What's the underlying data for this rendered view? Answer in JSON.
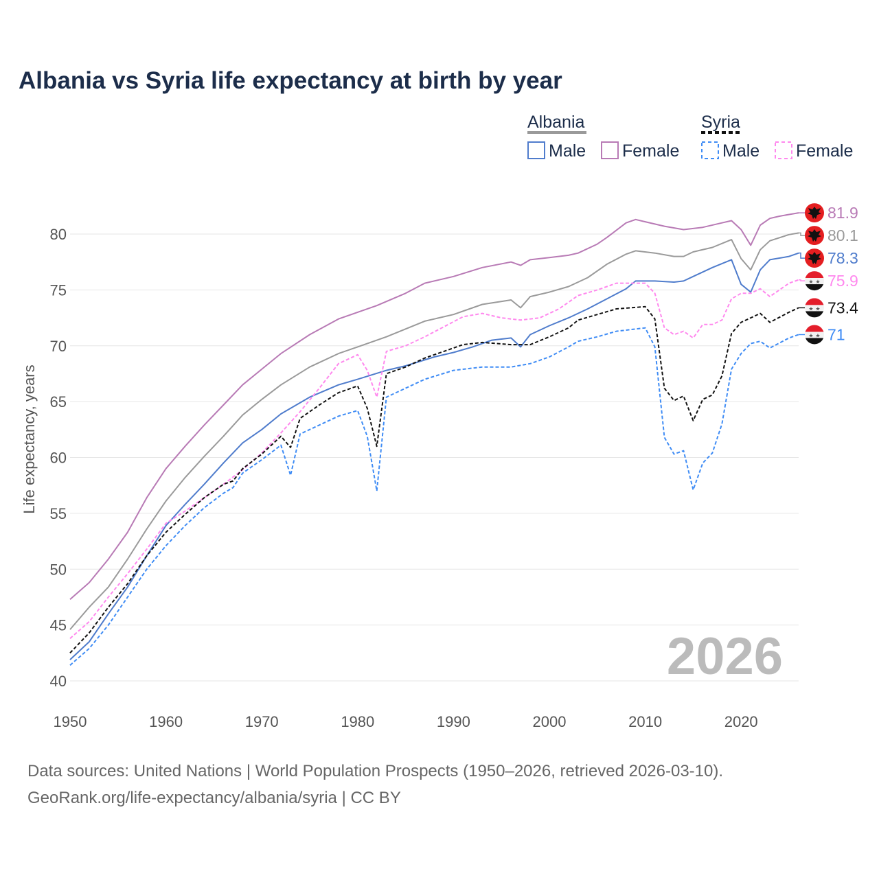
{
  "chart_data": {
    "type": "line",
    "title": "Albania vs Syria life expectancy at birth by year",
    "xlabel": "",
    "ylabel": "Life expectancy, years",
    "xlim": [
      1950,
      2026
    ],
    "ylim": [
      40,
      83
    ],
    "x_ticks": [
      1950,
      1960,
      1970,
      1980,
      1990,
      2000,
      2010,
      2020
    ],
    "y_ticks": [
      40,
      45,
      50,
      55,
      60,
      65,
      70,
      75,
      80
    ],
    "grid": true,
    "year_watermark": "2026",
    "legend": {
      "placement": "top-right",
      "groups": [
        {
          "country": "Albania",
          "items": [
            "Male",
            "Female"
          ],
          "style": "solid",
          "total_color": "#9a9a9a"
        },
        {
          "country": "Syria",
          "items": [
            "Male",
            "Female"
          ],
          "style": "dashed",
          "total_color": "#111111"
        }
      ]
    },
    "series": [
      {
        "name": "Albania Female",
        "country": "Albania",
        "sex": "Female",
        "color": "#b87ab5",
        "dash": false,
        "end_label": "81.9",
        "flag": "albania-flag",
        "points": [
          [
            1950,
            47.3
          ],
          [
            1952,
            48.8
          ],
          [
            1954,
            50.9
          ],
          [
            1956,
            53.3
          ],
          [
            1958,
            56.4
          ],
          [
            1960,
            59.0
          ],
          [
            1962,
            61.0
          ],
          [
            1964,
            62.9
          ],
          [
            1966,
            64.7
          ],
          [
            1968,
            66.5
          ],
          [
            1970,
            67.9
          ],
          [
            1972,
            69.3
          ],
          [
            1975,
            71.0
          ],
          [
            1978,
            72.4
          ],
          [
            1980,
            73.0
          ],
          [
            1982,
            73.6
          ],
          [
            1985,
            74.7
          ],
          [
            1987,
            75.6
          ],
          [
            1990,
            76.2
          ],
          [
            1993,
            77.0
          ],
          [
            1996,
            77.5
          ],
          [
            1997,
            77.2
          ],
          [
            1998,
            77.7
          ],
          [
            2000,
            77.9
          ],
          [
            2002,
            78.1
          ],
          [
            2003,
            78.3
          ],
          [
            2005,
            79.1
          ],
          [
            2006,
            79.7
          ],
          [
            2008,
            81.0
          ],
          [
            2009,
            81.3
          ],
          [
            2010,
            81.1
          ],
          [
            2012,
            80.7
          ],
          [
            2014,
            80.4
          ],
          [
            2016,
            80.6
          ],
          [
            2018,
            81.0
          ],
          [
            2019,
            81.2
          ],
          [
            2020,
            80.4
          ],
          [
            2021,
            79.0
          ],
          [
            2022,
            80.8
          ],
          [
            2023,
            81.4
          ],
          [
            2024,
            81.6
          ],
          [
            2025,
            81.75
          ],
          [
            2026,
            81.9
          ]
        ]
      },
      {
        "name": "Albania Total",
        "country": "Albania",
        "sex": "Total",
        "color": "#9a9a9a",
        "dash": false,
        "end_label": "80.1",
        "flag": "albania-flag",
        "points": [
          [
            1950,
            44.6
          ],
          [
            1952,
            46.6
          ],
          [
            1954,
            48.4
          ],
          [
            1956,
            50.9
          ],
          [
            1958,
            53.6
          ],
          [
            1960,
            56.1
          ],
          [
            1962,
            58.2
          ],
          [
            1964,
            60.1
          ],
          [
            1966,
            61.9
          ],
          [
            1968,
            63.8
          ],
          [
            1970,
            65.2
          ],
          [
            1972,
            66.5
          ],
          [
            1975,
            68.1
          ],
          [
            1978,
            69.3
          ],
          [
            1980,
            69.9
          ],
          [
            1983,
            70.8
          ],
          [
            1985,
            71.5
          ],
          [
            1987,
            72.2
          ],
          [
            1990,
            72.8
          ],
          [
            1993,
            73.7
          ],
          [
            1996,
            74.1
          ],
          [
            1997,
            73.4
          ],
          [
            1998,
            74.4
          ],
          [
            2000,
            74.8
          ],
          [
            2002,
            75.3
          ],
          [
            2004,
            76.1
          ],
          [
            2006,
            77.3
          ],
          [
            2008,
            78.2
          ],
          [
            2009,
            78.5
          ],
          [
            2011,
            78.3
          ],
          [
            2013,
            78.0
          ],
          [
            2014,
            78.0
          ],
          [
            2015,
            78.4
          ],
          [
            2017,
            78.8
          ],
          [
            2019,
            79.5
          ],
          [
            2020,
            77.8
          ],
          [
            2021,
            76.8
          ],
          [
            2022,
            78.6
          ],
          [
            2023,
            79.4
          ],
          [
            2025,
            79.95
          ],
          [
            2026,
            80.1
          ]
        ]
      },
      {
        "name": "Albania Male",
        "country": "Albania",
        "sex": "Male",
        "color": "#4f7ccc",
        "dash": false,
        "end_label": "78.3",
        "flag": "albania-flag",
        "points": [
          [
            1950,
            41.9
          ],
          [
            1952,
            43.5
          ],
          [
            1954,
            46.0
          ],
          [
            1956,
            48.4
          ],
          [
            1958,
            51.2
          ],
          [
            1960,
            53.9
          ],
          [
            1962,
            55.8
          ],
          [
            1964,
            57.6
          ],
          [
            1966,
            59.5
          ],
          [
            1968,
            61.3
          ],
          [
            1970,
            62.5
          ],
          [
            1972,
            63.9
          ],
          [
            1975,
            65.4
          ],
          [
            1978,
            66.5
          ],
          [
            1980,
            67.0
          ],
          [
            1983,
            67.8
          ],
          [
            1985,
            68.2
          ],
          [
            1988,
            69.0
          ],
          [
            1990,
            69.4
          ],
          [
            1992,
            69.9
          ],
          [
            1994,
            70.5
          ],
          [
            1996,
            70.7
          ],
          [
            1997,
            69.9
          ],
          [
            1998,
            71.0
          ],
          [
            2000,
            71.8
          ],
          [
            2002,
            72.5
          ],
          [
            2004,
            73.3
          ],
          [
            2006,
            74.2
          ],
          [
            2008,
            75.1
          ],
          [
            2009,
            75.8
          ],
          [
            2011,
            75.8
          ],
          [
            2013,
            75.7
          ],
          [
            2014,
            75.8
          ],
          [
            2015,
            76.2
          ],
          [
            2017,
            77.0
          ],
          [
            2019,
            77.7
          ],
          [
            2020,
            75.5
          ],
          [
            2021,
            74.8
          ],
          [
            2022,
            76.8
          ],
          [
            2023,
            77.7
          ],
          [
            2025,
            78.0
          ],
          [
            2026,
            78.3
          ]
        ]
      },
      {
        "name": "Syria Female",
        "country": "Syria",
        "sex": "Female",
        "color": "#ff88ee",
        "dash": true,
        "end_label": "75.9",
        "flag": "syria-flag",
        "points": [
          [
            1950,
            43.8
          ],
          [
            1952,
            45.3
          ],
          [
            1954,
            47.5
          ],
          [
            1956,
            49.6
          ],
          [
            1958,
            51.8
          ],
          [
            1960,
            54.1
          ],
          [
            1962,
            55.2
          ],
          [
            1964,
            56.4
          ],
          [
            1966,
            57.6
          ],
          [
            1968,
            58.9
          ],
          [
            1970,
            60.4
          ],
          [
            1972,
            62.2
          ],
          [
            1974,
            64.1
          ],
          [
            1976,
            66.2
          ],
          [
            1978,
            68.4
          ],
          [
            1980,
            69.2
          ],
          [
            1981,
            67.8
          ],
          [
            1982,
            65.4
          ],
          [
            1983,
            69.5
          ],
          [
            1985,
            70.0
          ],
          [
            1987,
            70.8
          ],
          [
            1989,
            71.7
          ],
          [
            1991,
            72.6
          ],
          [
            1993,
            72.9
          ],
          [
            1995,
            72.5
          ],
          [
            1997,
            72.3
          ],
          [
            1999,
            72.5
          ],
          [
            2001,
            73.3
          ],
          [
            2003,
            74.5
          ],
          [
            2005,
            75.0
          ],
          [
            2007,
            75.6
          ],
          [
            2010,
            75.6
          ],
          [
            2011,
            74.7
          ],
          [
            2012,
            71.6
          ],
          [
            2013,
            71.0
          ],
          [
            2014,
            71.3
          ],
          [
            2015,
            70.7
          ],
          [
            2016,
            71.9
          ],
          [
            2017,
            71.9
          ],
          [
            2018,
            72.3
          ],
          [
            2019,
            74.2
          ],
          [
            2020,
            74.7
          ],
          [
            2021,
            74.7
          ],
          [
            2022,
            75.1
          ],
          [
            2023,
            74.4
          ],
          [
            2025,
            75.6
          ],
          [
            2026,
            75.9
          ]
        ]
      },
      {
        "name": "Syria Total",
        "country": "Syria",
        "sex": "Total",
        "color": "#111111",
        "dash": true,
        "end_label": "73.4",
        "flag": "syria-flag",
        "points": [
          [
            1950,
            42.5
          ],
          [
            1952,
            44.3
          ],
          [
            1954,
            46.6
          ],
          [
            1956,
            48.7
          ],
          [
            1958,
            51.2
          ],
          [
            1960,
            53.3
          ],
          [
            1962,
            54.9
          ],
          [
            1964,
            56.4
          ],
          [
            1966,
            57.6
          ],
          [
            1967,
            57.9
          ],
          [
            1968,
            59.0
          ],
          [
            1970,
            60.3
          ],
          [
            1972,
            61.9
          ],
          [
            1973,
            60.9
          ],
          [
            1974,
            63.5
          ],
          [
            1976,
            64.7
          ],
          [
            1978,
            65.8
          ],
          [
            1980,
            66.4
          ],
          [
            1981,
            64.4
          ],
          [
            1982,
            61.0
          ],
          [
            1983,
            67.5
          ],
          [
            1985,
            68.1
          ],
          [
            1987,
            68.9
          ],
          [
            1989,
            69.5
          ],
          [
            1991,
            70.1
          ],
          [
            1993,
            70.3
          ],
          [
            1996,
            70.1
          ],
          [
            1998,
            70.1
          ],
          [
            2000,
            70.8
          ],
          [
            2002,
            71.6
          ],
          [
            2003,
            72.3
          ],
          [
            2005,
            72.8
          ],
          [
            2007,
            73.3
          ],
          [
            2010,
            73.5
          ],
          [
            2011,
            72.4
          ],
          [
            2012,
            66.2
          ],
          [
            2013,
            65.1
          ],
          [
            2014,
            65.5
          ],
          [
            2015,
            63.3
          ],
          [
            2016,
            65.2
          ],
          [
            2017,
            65.6
          ],
          [
            2018,
            67.3
          ],
          [
            2019,
            71.1
          ],
          [
            2020,
            72.1
          ],
          [
            2021,
            72.5
          ],
          [
            2022,
            72.9
          ],
          [
            2023,
            72.1
          ],
          [
            2025,
            73.0
          ],
          [
            2026,
            73.4
          ]
        ]
      },
      {
        "name": "Syria Male",
        "country": "Syria",
        "sex": "Male",
        "color": "#3f8cf5",
        "dash": true,
        "end_label": "71",
        "flag": "syria-flag",
        "points": [
          [
            1950,
            41.4
          ],
          [
            1952,
            42.9
          ],
          [
            1954,
            45.0
          ],
          [
            1956,
            47.5
          ],
          [
            1958,
            50.0
          ],
          [
            1960,
            52.1
          ],
          [
            1962,
            53.9
          ],
          [
            1964,
            55.5
          ],
          [
            1966,
            56.8
          ],
          [
            1967,
            57.3
          ],
          [
            1968,
            58.6
          ],
          [
            1970,
            59.8
          ],
          [
            1972,
            61.1
          ],
          [
            1973,
            58.4
          ],
          [
            1974,
            62.1
          ],
          [
            1976,
            62.9
          ],
          [
            1978,
            63.7
          ],
          [
            1980,
            64.2
          ],
          [
            1981,
            61.9
          ],
          [
            1982,
            57.0
          ],
          [
            1983,
            65.4
          ],
          [
            1985,
            66.2
          ],
          [
            1987,
            67.0
          ],
          [
            1990,
            67.8
          ],
          [
            1993,
            68.1
          ],
          [
            1996,
            68.1
          ],
          [
            1998,
            68.4
          ],
          [
            2000,
            69.0
          ],
          [
            2002,
            69.9
          ],
          [
            2003,
            70.4
          ],
          [
            2005,
            70.8
          ],
          [
            2007,
            71.3
          ],
          [
            2010,
            71.6
          ],
          [
            2011,
            69.9
          ],
          [
            2012,
            61.8
          ],
          [
            2013,
            60.3
          ],
          [
            2014,
            60.6
          ],
          [
            2015,
            57.1
          ],
          [
            2016,
            59.5
          ],
          [
            2017,
            60.4
          ],
          [
            2018,
            63.0
          ],
          [
            2019,
            67.9
          ],
          [
            2020,
            69.3
          ],
          [
            2021,
            70.2
          ],
          [
            2022,
            70.4
          ],
          [
            2023,
            69.8
          ],
          [
            2025,
            70.7
          ],
          [
            2026,
            71.0
          ]
        ]
      }
    ]
  },
  "footer": {
    "line1": "Data sources: United Nations | World Population Prospects (1950–2026, retrieved 2026-03-10).",
    "line2": "GeoRank.org/life-expectancy/albania/syria | CC BY"
  }
}
